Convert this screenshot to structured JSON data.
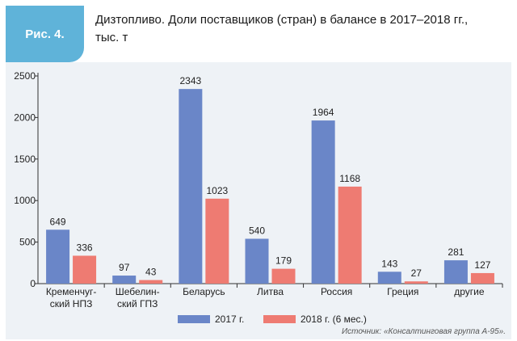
{
  "header": {
    "figure_label": "Рис. 4.",
    "title_line1": "Дизтопливо. Доли поставщиков (стран) в балансе в 2017–2018 гг.,",
    "title_line2": "тыс. т"
  },
  "colors": {
    "series_2017": "#6a86c8",
    "series_2018": "#ee7b72",
    "label_bar": "#5fb3d9"
  },
  "chart_data": {
    "type": "bar",
    "categories": [
      [
        "Кременчуг-",
        "ский НПЗ"
      ],
      [
        "Шебелин-",
        "ский ГПЗ"
      ],
      [
        "Беларусь"
      ],
      [
        "Литва"
      ],
      [
        "Россия"
      ],
      [
        "Греция"
      ],
      [
        "другие"
      ]
    ],
    "series": [
      {
        "name": "2017 г.",
        "values": [
          649,
          97,
          2343,
          540,
          1964,
          143,
          281
        ]
      },
      {
        "name": "2018 г. (6 мес.)",
        "values": [
          336,
          43,
          1023,
          179,
          1168,
          27,
          127
        ]
      }
    ],
    "ylim": [
      0,
      2500
    ],
    "yticks": [
      0,
      500,
      1000,
      1500,
      2000,
      2500
    ],
    "grid": false,
    "legend": "bottom-center"
  },
  "source": "Источник: «Консалтинговая группа А-95»."
}
